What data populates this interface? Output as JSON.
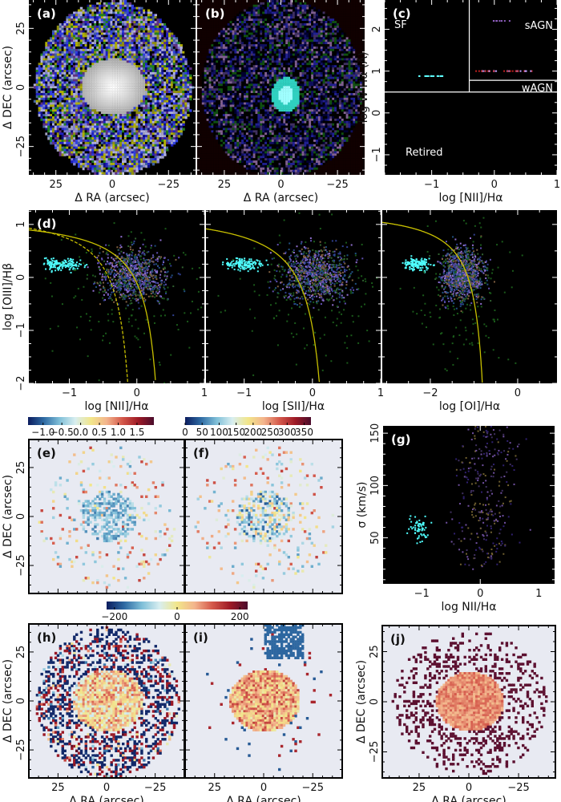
{
  "chart_data": [
    {
      "id": "a",
      "type": "heatmap",
      "panel_label": "(a)",
      "xlabel": "Δ RA (arcsec)",
      "ylabel": "Δ DEC (arcsec)",
      "xlim": [
        37,
        -37
      ],
      "ylim": [
        -37,
        37
      ],
      "xticks": [
        {
          "v": 25,
          "t": "25"
        },
        {
          "v": 0,
          "t": "0"
        },
        {
          "v": -25,
          "t": "−25"
        }
      ],
      "yticks": [
        {
          "v": -25,
          "t": "−25"
        },
        {
          "v": 0,
          "t": "0"
        },
        {
          "v": 25,
          "t": "25"
        }
      ],
      "background": "#000000",
      "tick_color": "#ffffff"
    },
    {
      "id": "b",
      "type": "heatmap",
      "panel_label": "(b)",
      "xlabel": "Δ RA (arcsec)",
      "ylabel": "",
      "xlim": [
        37,
        -37
      ],
      "ylim": [
        -37,
        37
      ],
      "xticks": [
        {
          "v": 25,
          "t": "25"
        },
        {
          "v": 0,
          "t": "0"
        },
        {
          "v": -25,
          "t": "−25"
        }
      ],
      "yticks": [],
      "background": "#000000",
      "tick_color": "#ffffff"
    },
    {
      "id": "c",
      "type": "scatter",
      "panel_label": "(c)",
      "xlabel": "log [NII]/Hα",
      "ylabel": "log W Hα (Å)",
      "xlim": [
        -1.75,
        1
      ],
      "ylim": [
        -1.48,
        2.7
      ],
      "xticks": [
        {
          "v": -1,
          "t": "−1"
        },
        {
          "v": 0,
          "t": "0"
        },
        {
          "v": 1,
          "t": "1"
        }
      ],
      "yticks": [
        {
          "v": -1,
          "t": "−1"
        },
        {
          "v": 0,
          "t": "0"
        },
        {
          "v": 1,
          "t": "1"
        },
        {
          "v": 2,
          "t": "2"
        }
      ],
      "region_labels": [
        "SF",
        "sAGN",
        "wAGN",
        "Retired"
      ],
      "dividers": {
        "vertical_x": -0.4,
        "horizontal_y": 0.5,
        "wagn_y": 0.78
      },
      "background": "#000000",
      "tick_color": "#ffffff"
    },
    {
      "id": "d1",
      "type": "scatter",
      "panel_label": "(d)",
      "xlabel": "log [NII]/Hα",
      "ylabel": "log [OIII]/Hβ",
      "xlim": [
        -1.6,
        1
      ],
      "ylim": [
        -2,
        1.27
      ],
      "xticks": [
        {
          "v": -1,
          "t": "−1"
        },
        {
          "v": 0,
          "t": "0"
        },
        {
          "v": 1,
          "t": "1"
        }
      ],
      "yticks": [
        {
          "v": -2,
          "t": "−2"
        },
        {
          "v": -1,
          "t": "−1"
        },
        {
          "v": 0,
          "t": "0"
        },
        {
          "v": 1,
          "t": "1"
        }
      ],
      "curves": [
        {
          "a": 0.61,
          "b": 0.05,
          "c": 1.3,
          "style": "dashed"
        },
        {
          "a": 0.61,
          "b": 0.47,
          "c": 1.19,
          "style": "solid"
        }
      ],
      "curve_color": "#c8c000",
      "background": "#000000",
      "tick_color": "#ffffff"
    },
    {
      "id": "d2",
      "type": "scatter",
      "panel_label": "",
      "xlabel": "log [SII]/Hα",
      "ylabel": "",
      "xlim": [
        -1.56,
        1
      ],
      "ylim": [
        -2,
        1.27
      ],
      "xticks": [
        {
          "v": -1,
          "t": "−1"
        },
        {
          "v": 0,
          "t": "0"
        },
        {
          "v": 1,
          "t": "1"
        }
      ],
      "yticks": [],
      "curves": [
        {
          "a": 0.72,
          "b": 0.32,
          "c": 1.3,
          "style": "solid"
        }
      ],
      "curve_color": "#c8c000",
      "background": "#000000",
      "tick_color": "#ffffff"
    },
    {
      "id": "d3",
      "type": "scatter",
      "panel_label": "",
      "xlabel": "log [OI]/Hα",
      "ylabel": "",
      "xlim": [
        -3.1,
        0.9
      ],
      "ylim": [
        -2,
        1.27
      ],
      "xticks": [
        {
          "v": -2,
          "t": "−2"
        },
        {
          "v": 0,
          "t": "0"
        }
      ],
      "yticks": [],
      "curves": [
        {
          "a": 0.73,
          "b": -0.59,
          "c": 1.33,
          "style": "solid"
        }
      ],
      "curve_color": "#c8c000",
      "background": "#000000",
      "tick_color": "#ffffff"
    },
    {
      "id": "e",
      "type": "heatmap",
      "panel_label": "(e)",
      "xlabel": "",
      "ylabel": "Δ DEC (arcsec)",
      "xlim": [
        40,
        -40
      ],
      "ylim": [
        -39.3,
        39.3
      ],
      "xticks": [],
      "yticks": [
        {
          "v": -25,
          "t": "−25"
        },
        {
          "v": 0,
          "t": "0"
        },
        {
          "v": 25,
          "t": "25"
        }
      ],
      "background": "#e8eaf2",
      "tick_color": "#000000",
      "colorbar": {
        "range": [
          -1.4,
          1.95
        ],
        "ticks": [
          {
            "v": -1,
            "t": "−1.0"
          },
          {
            "v": -0.5,
            "t": "−0.5"
          },
          {
            "v": 0,
            "t": "0.0"
          },
          {
            "v": 0.5,
            "t": "0.5"
          },
          {
            "v": 1,
            "t": "1.0"
          },
          {
            "v": 1.5,
            "t": "1.5"
          }
        ]
      }
    },
    {
      "id": "f",
      "type": "heatmap",
      "panel_label": "(f)",
      "xlabel": "",
      "ylabel": "",
      "xlim": [
        40,
        -40
      ],
      "ylim": [
        -39.3,
        39.3
      ],
      "xticks": [],
      "yticks": [],
      "background": "#e8eaf2",
      "tick_color": "#000000",
      "colorbar": {
        "range": [
          0,
          370
        ],
        "ticks": [
          {
            "v": 0,
            "t": "0"
          },
          {
            "v": 50,
            "t": "50"
          },
          {
            "v": 100,
            "t": "100"
          },
          {
            "v": 150,
            "t": "150"
          },
          {
            "v": 200,
            "t": "200"
          },
          {
            "v": 250,
            "t": "250"
          },
          {
            "v": 300,
            "t": "300"
          },
          {
            "v": 350,
            "t": "350"
          }
        ]
      }
    },
    {
      "id": "g",
      "type": "scatter",
      "panel_label": "(g)",
      "xlabel": "log NII/Hα",
      "ylabel": "σ (km/s)",
      "xlim": [
        -1.66,
        1.27
      ],
      "ylim": [
        6,
        157
      ],
      "xticks": [
        {
          "v": -1,
          "t": "−1"
        },
        {
          "v": 0,
          "t": "0"
        },
        {
          "v": 1,
          "t": "1"
        }
      ],
      "yticks": [
        {
          "v": 50,
          "t": "50"
        },
        {
          "v": 100,
          "t": "100"
        },
        {
          "v": 150,
          "t": "150"
        }
      ],
      "background": "#000000",
      "tick_color": "#ffffff"
    },
    {
      "id": "h",
      "type": "heatmap",
      "panel_label": "(h)",
      "xlabel": "Δ RA (arcsec)",
      "ylabel": "Δ DEC (arcsec)",
      "xlim": [
        40,
        -40
      ],
      "ylim": [
        -39.3,
        39.3
      ],
      "xticks": [
        {
          "v": 25,
          "t": "25"
        },
        {
          "v": 0,
          "t": "0"
        },
        {
          "v": -25,
          "t": "−25"
        }
      ],
      "yticks": [
        {
          "v": -25,
          "t": "−25"
        },
        {
          "v": 0,
          "t": "0"
        },
        {
          "v": 25,
          "t": "25"
        }
      ],
      "background": "#e8eaf2",
      "tick_color": "#000000",
      "colorbar": {
        "range": [
          -225,
          225
        ],
        "ticks": [
          {
            "v": -200,
            "t": "−200"
          },
          {
            "v": 0,
            "t": "0"
          },
          {
            "v": 200,
            "t": "200"
          }
        ]
      }
    },
    {
      "id": "i",
      "type": "heatmap",
      "panel_label": "(i)",
      "xlabel": "Δ RA (arcsec)",
      "ylabel": "",
      "xlim": [
        40,
        -40
      ],
      "ylim": [
        -39.3,
        39.3
      ],
      "xticks": [
        {
          "v": 25,
          "t": "25"
        },
        {
          "v": 0,
          "t": "0"
        },
        {
          "v": -25,
          "t": "−25"
        }
      ],
      "yticks": [],
      "background": "#e8eaf2",
      "tick_color": "#000000"
    },
    {
      "id": "j",
      "type": "heatmap",
      "panel_label": "(j)",
      "xlabel": "Δ RA (arcsec)",
      "ylabel": "Δ DEC (arcsec)",
      "xlim": [
        43.5,
        -43.5
      ],
      "ylim": [
        -38,
        38
      ],
      "xticks": [
        {
          "v": 25,
          "t": "25"
        },
        {
          "v": 0,
          "t": "0"
        },
        {
          "v": -25,
          "t": "−25"
        }
      ],
      "yticks": [
        {
          "v": -25,
          "t": "−25"
        },
        {
          "v": 0,
          "t": "0"
        },
        {
          "v": 25,
          "t": "25"
        }
      ],
      "background": "#e8eaf2",
      "tick_color": "#000000",
      "fill_color": "#5c1030"
    }
  ],
  "colormap": [
    "#0b1c5e",
    "#2e6aa3",
    "#7fbfd8",
    "#d8eef0",
    "#f2e68a",
    "#f3b48c",
    "#d4584a",
    "#9e1a26",
    "#4a0c2c"
  ]
}
